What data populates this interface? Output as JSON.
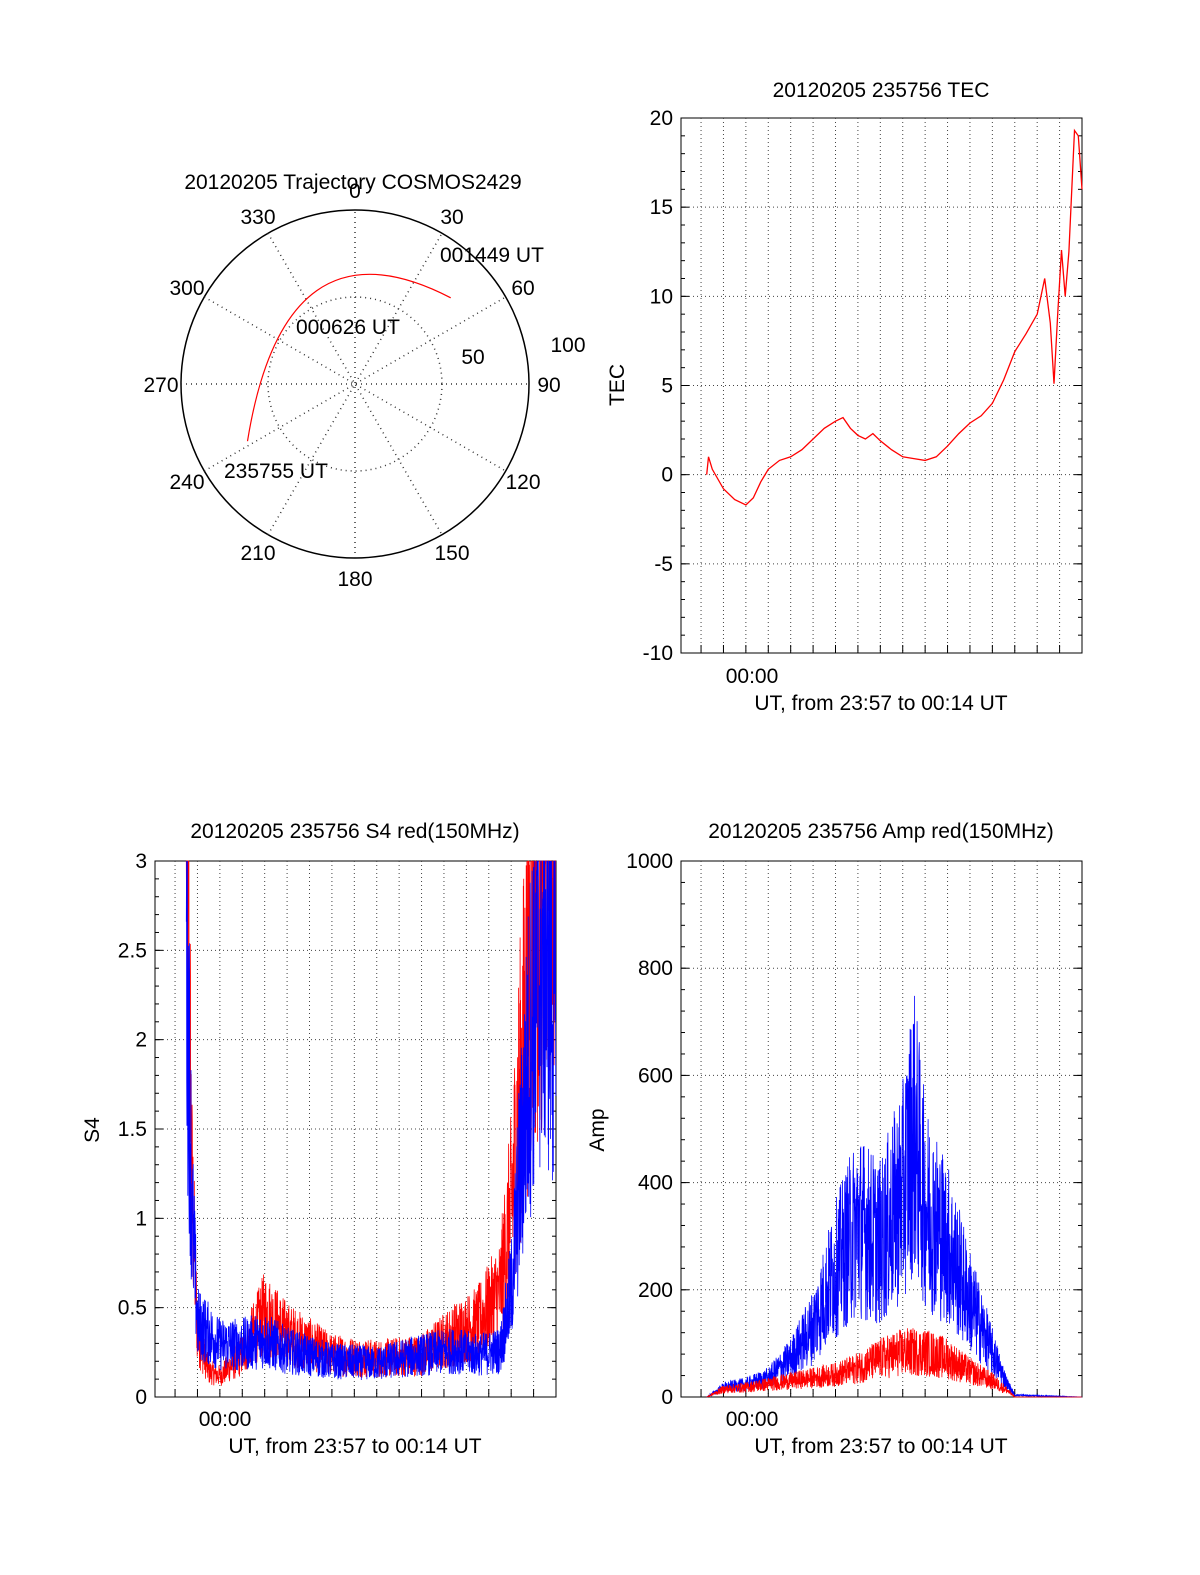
{
  "figure": {
    "colors": {
      "red": "#ff0000",
      "blue": "#0000ff",
      "axis": "#000000",
      "grid": "#555555"
    }
  },
  "chart_data": [
    {
      "id": "polar",
      "type": "polar-trajectory",
      "title": "20120205 Trajectory COSMOS2429",
      "azimuth_labels": [
        "0",
        "30",
        "60",
        "90",
        "120",
        "150",
        "180",
        "210",
        "240",
        "270",
        "300",
        "330"
      ],
      "radial_labels": [
        "50",
        "100"
      ],
      "radial_range": [
        0,
        100
      ],
      "track": {
        "color": "#ff0000",
        "start": {
          "az": 242,
          "zen": 70
        },
        "end": {
          "az": 48,
          "zen": 74
        },
        "midpoint_zen": 58
      },
      "annotations": [
        {
          "text": "001449 UT",
          "az": 48,
          "zen": 74
        },
        {
          "text": "000626 UT",
          "az": 10,
          "zen": 34
        },
        {
          "text": "235755 UT",
          "az": 240,
          "zen": 72
        }
      ],
      "grid": true
    },
    {
      "id": "tec",
      "type": "line",
      "title": "20120205 235756 TEC",
      "ylabel": "TEC",
      "xlabel": "UT, from 23:57 to 00:14 UT",
      "x_tick_label": "00:00",
      "x_range": [
        "23:57",
        "00:14"
      ],
      "ylim": [
        -10,
        20
      ],
      "y_ticks": [
        "-10",
        "-5",
        "0",
        "5",
        "10",
        "15",
        "20"
      ],
      "grid": true,
      "series": [
        {
          "color": "#ff0000",
          "points": [
            [
              "23:57:15",
              0.0
            ],
            [
              "23:57:20",
              1.0
            ],
            [
              "23:57:30",
              0.3
            ],
            [
              "23:58:00",
              -0.8
            ],
            [
              "23:58:30",
              -1.4
            ],
            [
              "23:59:00",
              -1.7
            ],
            [
              "23:59:20",
              -1.3
            ],
            [
              "23:59:40",
              -0.4
            ],
            [
              "00:00:00",
              0.3
            ],
            [
              "00:00:30",
              0.8
            ],
            [
              "00:01:00",
              1.0
            ],
            [
              "00:01:30",
              1.4
            ],
            [
              "00:02:00",
              2.0
            ],
            [
              "00:02:30",
              2.6
            ],
            [
              "00:03:00",
              3.0
            ],
            [
              "00:03:20",
              3.2
            ],
            [
              "00:03:40",
              2.6
            ],
            [
              "00:04:00",
              2.2
            ],
            [
              "00:04:20",
              2.0
            ],
            [
              "00:04:40",
              2.3
            ],
            [
              "00:05:00",
              1.9
            ],
            [
              "00:05:30",
              1.4
            ],
            [
              "00:06:00",
              1.0
            ],
            [
              "00:06:30",
              0.9
            ],
            [
              "00:07:00",
              0.8
            ],
            [
              "00:07:30",
              1.0
            ],
            [
              "00:08:00",
              1.6
            ],
            [
              "00:08:30",
              2.3
            ],
            [
              "00:09:00",
              2.9
            ],
            [
              "00:09:30",
              3.3
            ],
            [
              "00:10:00",
              4.0
            ],
            [
              "00:10:30",
              5.3
            ],
            [
              "00:11:00",
              6.9
            ],
            [
              "00:11:30",
              7.9
            ],
            [
              "00:12:00",
              9.0
            ],
            [
              "00:12:20",
              11.0
            ],
            [
              "00:12:35",
              8.5
            ],
            [
              "00:12:45",
              5.1
            ],
            [
              "00:12:55",
              9.0
            ],
            [
              "00:13:05",
              12.6
            ],
            [
              "00:13:15",
              10.0
            ],
            [
              "00:13:25",
              12.5
            ],
            [
              "00:13:40",
              19.3
            ],
            [
              "00:13:50",
              19.0
            ],
            [
              "00:14:00",
              16.0
            ]
          ]
        }
      ]
    },
    {
      "id": "s4",
      "type": "line",
      "title": "20120205 235756 S4 red(150MHz)",
      "ylabel": "S4",
      "xlabel": "UT, from 23:57 to 00:14 UT",
      "x_tick_label": "00:00",
      "x_range": [
        "23:57",
        "00:14"
      ],
      "ylim": [
        0,
        3
      ],
      "y_ticks": [
        "0",
        "0.5",
        "1",
        "1.5",
        "2",
        "2.5",
        "3"
      ],
      "grid": true,
      "series": [
        {
          "color": "#ff0000",
          "envelope": [
            [
              "23:57:30",
              3.0
            ],
            [
              "23:57:45",
              1.0
            ],
            [
              "23:58:00",
              0.3
            ],
            [
              "23:58:30",
              0.12
            ],
            [
              "23:59:00",
              0.1
            ],
            [
              "00:00:00",
              0.2
            ],
            [
              "00:01:00",
              0.4
            ],
            [
              "00:02:00",
              0.3
            ],
            [
              "00:04:00",
              0.2
            ],
            [
              "00:06:00",
              0.18
            ],
            [
              "00:08:00",
              0.2
            ],
            [
              "00:09:30",
              0.3
            ],
            [
              "00:10:30",
              0.35
            ],
            [
              "00:11:30",
              0.5
            ],
            [
              "00:12:00",
              0.9
            ],
            [
              "00:12:30",
              1.6
            ],
            [
              "00:13:00",
              2.3
            ],
            [
              "00:13:30",
              2.6
            ],
            [
              "00:14:00",
              3.0
            ]
          ]
        },
        {
          "color": "#0000ff",
          "envelope": [
            [
              "23:57:30",
              2.3
            ],
            [
              "23:57:45",
              0.9
            ],
            [
              "23:58:00",
              0.35
            ],
            [
              "23:58:30",
              0.3
            ],
            [
              "23:59:00",
              0.25
            ],
            [
              "00:00:00",
              0.25
            ],
            [
              "00:01:00",
              0.27
            ],
            [
              "00:02:00",
              0.22
            ],
            [
              "00:04:00",
              0.17
            ],
            [
              "00:06:00",
              0.16
            ],
            [
              "00:08:00",
              0.2
            ],
            [
              "00:09:30",
              0.22
            ],
            [
              "00:10:30",
              0.2
            ],
            [
              "00:11:30",
              0.22
            ],
            [
              "00:12:00",
              0.5
            ],
            [
              "00:12:30",
              1.2
            ],
            [
              "00:13:00",
              1.9
            ],
            [
              "00:13:30",
              2.2
            ],
            [
              "00:14:00",
              1.8
            ]
          ]
        }
      ]
    },
    {
      "id": "amp",
      "type": "line",
      "title": "20120205 235756 Amp red(150MHz)",
      "ylabel": "Amp",
      "xlabel": "UT, from 23:57 to 00:14 UT",
      "x_tick_label": "00:00",
      "x_range": [
        "23:57",
        "00:14"
      ],
      "ylim": [
        0,
        1000
      ],
      "y_ticks": [
        "0",
        "200",
        "400",
        "600",
        "800",
        "1000"
      ],
      "grid": true,
      "series": [
        {
          "color": "#0000ff",
          "envelope": [
            [
              "23:57:15",
              0
            ],
            [
              "23:58:00",
              15
            ],
            [
              "23:59:00",
              20
            ],
            [
              "00:00:00",
              30
            ],
            [
              "00:01:00",
              60
            ],
            [
              "00:02:00",
              110
            ],
            [
              "00:03:00",
              200
            ],
            [
              "00:04:00",
              270
            ],
            [
              "00:05:00",
              240
            ],
            [
              "00:06:00",
              320
            ],
            [
              "00:06:30",
              420
            ],
            [
              "00:07:00",
              300
            ],
            [
              "00:08:00",
              240
            ],
            [
              "00:09:00",
              150
            ],
            [
              "00:10:00",
              70
            ],
            [
              "00:10:40",
              20
            ],
            [
              "00:11:00",
              3
            ],
            [
              "00:14:00",
              0
            ]
          ]
        },
        {
          "color": "#ff0000",
          "envelope": [
            [
              "23:57:15",
              0
            ],
            [
              "23:58:00",
              12
            ],
            [
              "23:59:00",
              15
            ],
            [
              "00:00:00",
              20
            ],
            [
              "00:01:00",
              25
            ],
            [
              "00:02:00",
              30
            ],
            [
              "00:03:00",
              35
            ],
            [
              "00:04:00",
              45
            ],
            [
              "00:05:00",
              60
            ],
            [
              "00:06:00",
              70
            ],
            [
              "00:07:00",
              70
            ],
            [
              "00:08:00",
              60
            ],
            [
              "00:09:00",
              40
            ],
            [
              "00:10:00",
              25
            ],
            [
              "00:10:40",
              10
            ],
            [
              "00:11:00",
              0
            ],
            [
              "00:14:00",
              0
            ]
          ]
        }
      ]
    }
  ]
}
